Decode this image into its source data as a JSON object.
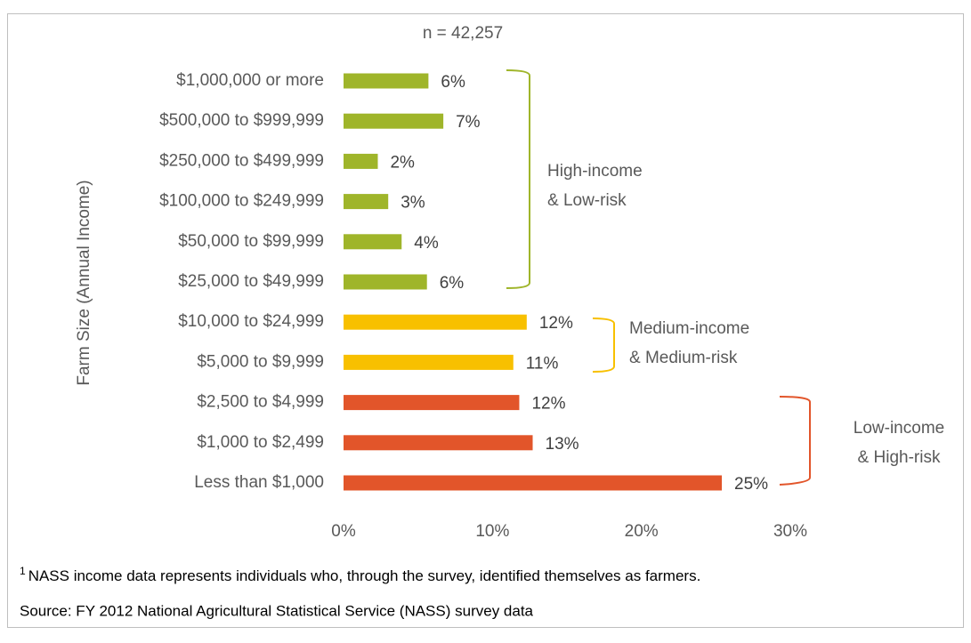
{
  "chart_data": {
    "type": "bar",
    "orientation": "horizontal",
    "subtitle": "n = 42,257",
    "y_label": "Farm Size (Annual Income)",
    "categories": [
      "$1,000,000 or more",
      "$500,000 to $999,999",
      "$250,000 to $499,999",
      "$100,000 to $249,999",
      "$50,000 to $99,999",
      "$25,000 to $49,999",
      "$10,000 to $24,999",
      "$5,000 to $9,999",
      "$2,500 to $4,999",
      "$1,000 to $2,499",
      "Less than $1,000"
    ],
    "values": [
      5.7,
      6.7,
      2.3,
      3.0,
      3.9,
      5.6,
      12.3,
      11.4,
      11.8,
      12.7,
      25.4
    ],
    "value_labels": [
      "6%",
      "7%",
      "2%",
      "3%",
      "4%",
      "6%",
      "12%",
      "11%",
      "12%",
      "13%",
      "25%"
    ],
    "colors": [
      "#9fb52a",
      "#9fb52a",
      "#9fb52a",
      "#9fb52a",
      "#9fb52a",
      "#9fb52a",
      "#f8c000",
      "#f8c000",
      "#e2552a",
      "#e2552a",
      "#e2552a"
    ],
    "xlim": [
      0,
      30
    ],
    "xticks": [
      {
        "value": 0,
        "label": "0%"
      },
      {
        "value": 10,
        "label": "10%"
      },
      {
        "value": 20,
        "label": "20%"
      },
      {
        "value": 30,
        "label": "30%"
      }
    ],
    "grid": false,
    "annotations": [
      {
        "lines": [
          "High-income",
          "& Low-risk"
        ]
      },
      {
        "lines": [
          "Medium-income",
          "& Medium-risk"
        ]
      },
      {
        "lines": [
          "Low-income",
          "& High-risk"
        ]
      }
    ],
    "footnote_marker": "1",
    "footnote": "NASS income data represents individuals who, through the survey, identified themselves as farmers.",
    "source": "Source: FY 2012 National Agricultural Statistical Service (NASS) survey data"
  }
}
